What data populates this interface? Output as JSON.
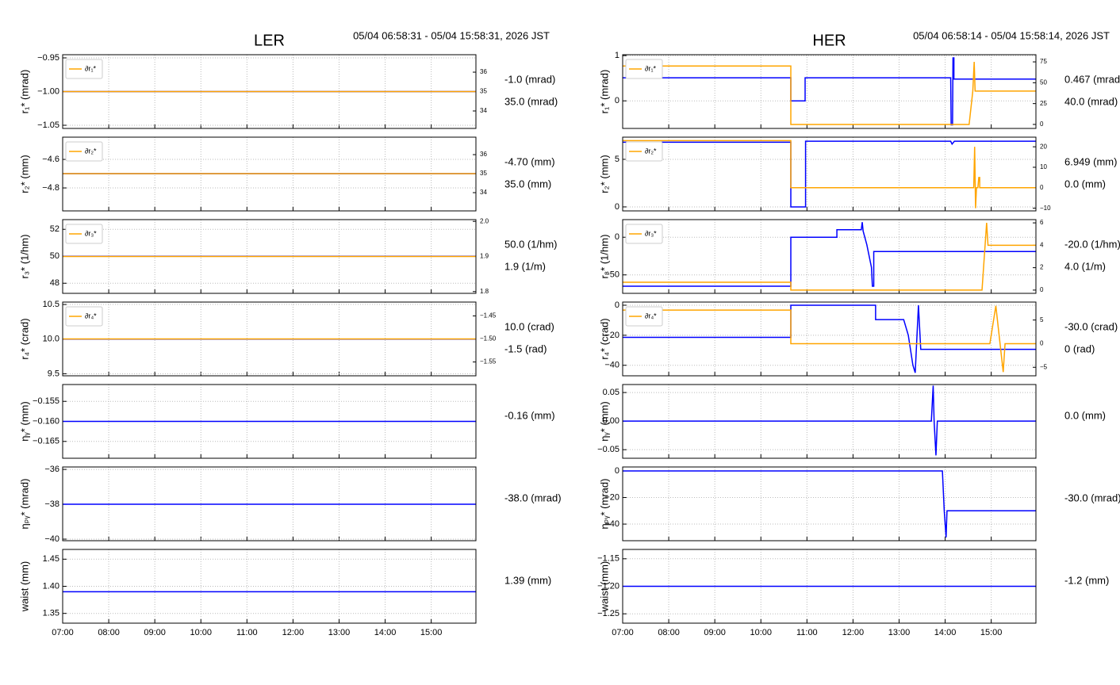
{
  "chart_data": [
    {
      "type": "line",
      "title": "LER",
      "subtitle": "05/04 06:58:31 - 05/04 15:58:31, 2026 JST",
      "xlim": [
        7,
        15.97
      ],
      "xticks": [
        {
          "value": 7,
          "label": "07:00"
        },
        {
          "value": 8,
          "label": "08:00"
        },
        {
          "value": 9,
          "label": "09:00"
        },
        {
          "value": 10,
          "label": "10:00"
        },
        {
          "value": 11,
          "label": "11:00"
        },
        {
          "value": 12,
          "label": "12:00"
        },
        {
          "value": 13,
          "label": "13:00"
        },
        {
          "value": 14,
          "label": "14:00"
        },
        {
          "value": 15,
          "label": "15:00"
        }
      ],
      "grid": true,
      "panels": [
        {
          "ylabel": "r₁* (mrad)",
          "ylim": [
            -1.0547,
            -0.9453
          ],
          "yticks": [
            {
              "value": -1.05,
              "label": "−1.05"
            },
            {
              "value": -1.0,
              "label": "−1.00"
            },
            {
              "value": -0.95,
              "label": "−0.95"
            }
          ],
          "y2lim": [
            33.1,
            36.9
          ],
          "y2ticks": [
            34,
            35,
            36
          ],
          "series": [
            {
              "color": "#0000ff",
              "x": [
                7,
                15.97
              ],
              "values": [
                -1.0,
                -1.0
              ]
            },
            {
              "name": "∂r₁*",
              "color": "#ffa500",
              "axis": "y2",
              "x": [
                7,
                15.97
              ],
              "values": [
                35,
                35
              ]
            }
          ],
          "annotations": [
            "-1.0 (mrad)",
            "35.0 (mrad)"
          ]
        },
        {
          "ylabel": "r₂* (mm)",
          "ylim": [
            -4.961,
            -4.444
          ],
          "yticks": [
            {
              "value": -4.8,
              "label": "−4.8"
            },
            {
              "value": -4.6,
              "label": "−4.6"
            }
          ],
          "y2lim": [
            33.04,
            36.92
          ],
          "y2ticks": [
            34,
            35,
            36
          ],
          "series": [
            {
              "color": "#0000ff",
              "x": [
                7,
                15.97
              ],
              "values": [
                -4.7,
                -4.7
              ]
            },
            {
              "name": "∂r₂*",
              "color": "#ffa500",
              "axis": "y2",
              "x": [
                7,
                15.97
              ],
              "values": [
                35,
                35
              ]
            }
          ],
          "annotations": [
            "-4.70 (mm)",
            "35.0 (mm)"
          ]
        },
        {
          "ylabel": "r₃* (1/hm)",
          "ylim": [
            47.25,
            52.72
          ],
          "yticks": [
            48,
            50,
            52
          ],
          "y2lim": [
            1.795,
            2.005
          ],
          "y2ticks": [
            1.8,
            1.9,
            {
              "value": 2,
              "label": "2.0"
            }
          ],
          "series": [
            {
              "color": "#0000ff",
              "x": [
                7,
                15.97
              ],
              "values": [
                50,
                50
              ]
            },
            {
              "name": "∂r₃*",
              "color": "#ffa500",
              "axis": "y2",
              "x": [
                7,
                15.97
              ],
              "values": [
                1.9,
                1.9
              ]
            }
          ],
          "annotations": [
            "50.0 (1/hm)",
            "1.9 (1/m)"
          ]
        },
        {
          "ylabel": "r₄* (crad)",
          "ylim": [
            9.47,
            10.535
          ],
          "yticks": [
            9.5,
            {
              "value": 10,
              "label": "10.0"
            },
            10.5
          ],
          "y2lim": [
            -1.58,
            -1.42
          ],
          "y2ticks": [
            {
              "value": -1.55,
              "label": "−1.55"
            },
            {
              "value": -1.5,
              "label": "−1.50"
            },
            {
              "value": -1.45,
              "label": "−1.45"
            }
          ],
          "series": [
            {
              "color": "#0000ff",
              "x": [
                7,
                15.97
              ],
              "values": [
                10,
                10
              ]
            },
            {
              "name": "∂r₄*",
              "color": "#ffa500",
              "axis": "y2",
              "x": [
                7,
                15.97
              ],
              "values": [
                -1.5,
                -1.5
              ]
            }
          ],
          "annotations": [
            "10.0 (crad)",
            "-1.5 (rad)"
          ]
        },
        {
          "ylabel": "ηᵧ* (mm)",
          "ylim": [
            -0.1692,
            -0.1508
          ],
          "yticks": [
            {
              "value": -0.165,
              "label": "−0.165"
            },
            {
              "value": -0.16,
              "label": "−0.160"
            },
            {
              "value": -0.155,
              "label": "−0.155"
            }
          ],
          "series": [
            {
              "color": "#0000ff",
              "x": [
                7,
                15.97
              ],
              "values": [
                -0.16,
                -0.16
              ]
            }
          ],
          "annotations": [
            "-0.16 (mm)"
          ]
        },
        {
          "ylabel": "ηₚᵧ* (mrad)",
          "ylim": [
            -40.09,
            -35.86
          ],
          "yticks": [
            {
              "value": -40,
              "label": "−40"
            },
            {
              "value": -38,
              "label": "−38"
            },
            {
              "value": -36,
              "label": "−36"
            }
          ],
          "series": [
            {
              "color": "#0000ff",
              "x": [
                7,
                15.97
              ],
              "values": [
                -38,
                -38
              ]
            }
          ],
          "annotations": [
            "-38.0 (mrad)"
          ]
        },
        {
          "ylabel": "waist (mm)",
          "ylim": [
            1.332,
            1.468
          ],
          "yticks": [
            1.35,
            {
              "value": 1.4,
              "label": "1.40"
            },
            1.45
          ],
          "series": [
            {
              "color": "#0000ff",
              "x": [
                7,
                15.97
              ],
              "values": [
                1.39,
                1.39
              ]
            }
          ],
          "annotations": [
            "1.39 (mm)"
          ]
        }
      ]
    },
    {
      "type": "line",
      "title": "HER",
      "subtitle": "05/04 06:58:14 - 05/04 15:58:14, 2026 JST",
      "xlim": [
        7,
        15.97
      ],
      "xticks": [
        {
          "value": 7,
          "label": "07:00"
        },
        {
          "value": 8,
          "label": "08:00"
        },
        {
          "value": 9,
          "label": "09:00"
        },
        {
          "value": 10,
          "label": "10:00"
        },
        {
          "value": 11,
          "label": "11:00"
        },
        {
          "value": 12,
          "label": "12:00"
        },
        {
          "value": 13,
          "label": "13:00"
        },
        {
          "value": 14,
          "label": "14:00"
        },
        {
          "value": 15,
          "label": "15:00"
        }
      ],
      "grid": true,
      "panels": [
        {
          "ylabel": "r₁* (mrad)",
          "ylim": [
            -0.61,
            1.02
          ],
          "yticks": [
            0,
            1
          ],
          "y2lim": [
            -4.8,
            83.6
          ],
          "y2ticks": [
            0,
            25,
            50,
            75
          ],
          "series": [
            {
              "color": "#0000ff",
              "x": [
                7,
                10.65,
                10.65,
                10.96,
                10.96,
                14.12,
                14.13,
                14.16,
                14.17,
                14.19,
                14.19,
                15.97
              ],
              "values": [
                0.51,
                0.51,
                0,
                0,
                0.51,
                0.51,
                -0.53,
                -0.53,
                0.95,
                0.95,
                0.48,
                0.48
              ]
            },
            {
              "name": "∂r₁*",
              "color": "#ffa500",
              "axis": "y2",
              "x": [
                7,
                10.65,
                10.65,
                14.52,
                14.6,
                14.63,
                14.65,
                15.97
              ],
              "values": [
                70,
                70,
                0,
                0,
                40,
                75,
                40,
                40
              ]
            }
          ],
          "annotations": [
            "0.467 (mrad)",
            "40.0 (mrad)"
          ]
        },
        {
          "ylabel": "r₂* (mm)",
          "ylim": [
            -0.42,
            7.33
          ],
          "yticks": [
            0,
            5
          ],
          "y2lim": [
            -11.3,
            24.7
          ],
          "y2ticks": [
            {
              "value": -10,
              "label": "−10"
            },
            0,
            10,
            20
          ],
          "series": [
            {
              "color": "#0000ff",
              "x": [
                7,
                10.65,
                10.65,
                10.97,
                10.97,
                14.12,
                14.15,
                14.2,
                15.97
              ],
              "values": [
                6.8,
                6.8,
                0,
                0,
                6.9,
                6.9,
                6.6,
                6.9,
                6.9
              ]
            },
            {
              "name": "∂r₂*",
              "color": "#ffa500",
              "axis": "y2",
              "x": [
                7,
                10.65,
                10.65,
                14.62,
                14.64,
                14.66,
                14.68,
                14.71,
                14.73,
                14.75,
                14.75,
                15.97
              ],
              "values": [
                23,
                23,
                0,
                0,
                20,
                -10,
                0,
                0,
                5,
                5,
                0,
                0
              ]
            }
          ],
          "annotations": [
            "6.949 (mm)",
            "0.0 (mm)"
          ]
        },
        {
          "ylabel": "r₃* (1/hm)",
          "ylim": [
            -74.5,
            23.4
          ],
          "yticks": [
            {
              "value": -50,
              "label": "−50"
            },
            0
          ],
          "y2lim": [
            -0.29,
            6.29
          ],
          "y2ticks": [
            0,
            2,
            4,
            6
          ],
          "series": [
            {
              "color": "#0000ff",
              "x": [
                7,
                10.65,
                10.65,
                11.65,
                11.65,
                12.18,
                12.2,
                12.22,
                12.3,
                12.4,
                12.42,
                12.45,
                12.45,
                15.97
              ],
              "values": [
                -65,
                -65,
                0,
                0,
                10,
                10,
                20,
                8,
                -10,
                -40,
                -65,
                -65,
                -19,
                -19
              ]
            },
            {
              "name": "∂r₃*",
              "color": "#ffa500",
              "axis": "y2",
              "x": [
                7,
                10.65,
                10.65,
                14.8,
                14.9,
                14.93,
                15.97
              ],
              "values": [
                0.7,
                0.7,
                0,
                0,
                6,
                4,
                4
              ]
            }
          ],
          "annotations": [
            "-20.0 (1/hm)",
            "4.0 (1/m)"
          ]
        },
        {
          "ylabel": "r₄* (crad)",
          "ylim": [
            -47,
            2.1
          ],
          "yticks": [
            {
              "value": -40,
              "label": "−40"
            },
            {
              "value": -20,
              "label": "−20"
            },
            0
          ],
          "y2lim": [
            -6.8,
            8.8
          ],
          "y2ticks": [
            {
              "value": -5,
              "label": "−5"
            },
            0,
            5
          ],
          "series": [
            {
              "color": "#0000ff",
              "x": [
                7,
                10.65,
                10.65,
                12.49,
                12.49,
                13.1,
                13.2,
                13.3,
                13.35,
                13.42,
                13.47,
                15.97
              ],
              "values": [
                -21.4,
                -21.4,
                0,
                0,
                -9.6,
                -9.6,
                -20,
                -40,
                -45,
                0,
                -29.4,
                -29.4
              ]
            },
            {
              "name": "∂r₄*",
              "color": "#ffa500",
              "axis": "y2",
              "x": [
                7,
                10.65,
                10.65,
                14.97,
                15.1,
                15.26,
                15.3,
                15.97
              ],
              "values": [
                7.1,
                7.1,
                0,
                0,
                8,
                -6,
                0,
                0
              ]
            }
          ],
          "annotations": [
            "-30.0 (crad)",
            "0 (rad)"
          ]
        },
        {
          "ylabel": "ηᵧ* (mm)",
          "ylim": [
            -0.065,
            0.064
          ],
          "yticks": [
            {
              "value": -0.05,
              "label": "−0.05"
            },
            {
              "value": 0,
              "label": "0.00"
            },
            0.05
          ],
          "series": [
            {
              "color": "#0000ff",
              "x": [
                7,
                13.7,
                13.74,
                13.76,
                13.8,
                13.83,
                15.97
              ],
              "values": [
                0,
                0,
                0.062,
                0,
                -0.06,
                0,
                0
              ]
            }
          ],
          "annotations": [
            "0.0 (mm)"
          ]
        },
        {
          "ylabel": "ηₚᵧ* (mrad)",
          "ylim": [
            -52.5,
            3
          ],
          "yticks": [
            {
              "value": -40,
              "label": "−40"
            },
            {
              "value": -20,
              "label": "−20"
            },
            0
          ],
          "series": [
            {
              "color": "#0000ff",
              "x": [
                7,
                13.94,
                13.98,
                14.02,
                14.04,
                15.97
              ],
              "values": [
                0,
                0,
                -30,
                -50,
                -30,
                -30
              ]
            }
          ],
          "annotations": [
            "-30.0 (mrad)"
          ]
        },
        {
          "ylabel": "waist (mm)",
          "ylim": [
            -1.267,
            -1.133
          ],
          "yticks": [
            {
              "value": -1.25,
              "label": "−1.25"
            },
            {
              "value": -1.2,
              "label": "−1.20"
            },
            {
              "value": -1.15,
              "label": "−1.15"
            }
          ],
          "series": [
            {
              "color": "#0000ff",
              "x": [
                7,
                15.97
              ],
              "values": [
                -1.2,
                -1.2
              ]
            }
          ],
          "annotations": [
            "-1.2 (mm)"
          ]
        }
      ]
    }
  ]
}
